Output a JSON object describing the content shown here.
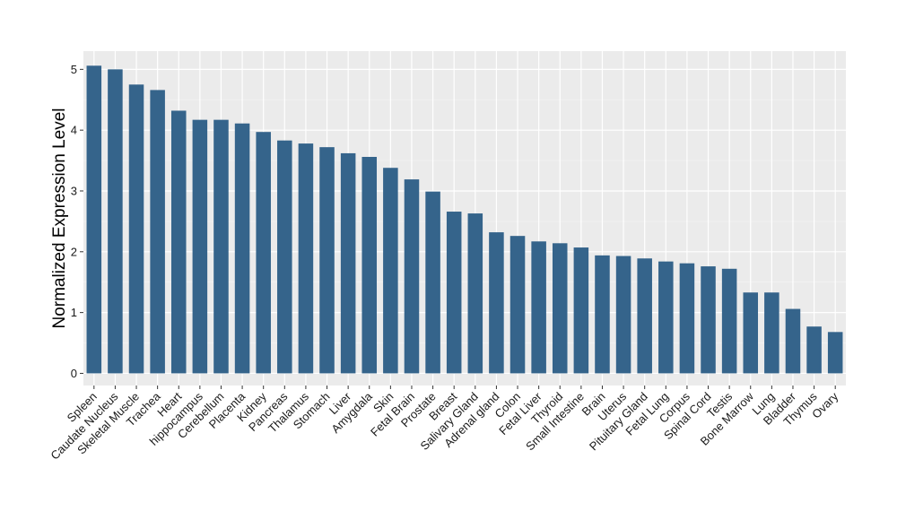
{
  "chart_data": {
    "type": "bar",
    "title": "",
    "xlabel": "",
    "ylabel": "Normalized Expression Level",
    "ylim": [
      -0.2,
      5.3
    ],
    "yticks": [
      0,
      1,
      2,
      3,
      4,
      5
    ],
    "grid": true,
    "legend": "none",
    "bar_color": "#35648b",
    "panel_color": "#ebebeb",
    "categories": [
      "Spleen",
      "Caudate Nucleus",
      "Skeletal Muscle",
      "Trachea",
      "Heart",
      "hippocampus",
      "Cerebellum",
      "Placenta",
      "Kidney",
      "Pancreas",
      "Thalamus",
      "Stomach",
      "Liver",
      "Amygdala",
      "Skin",
      "Fetal Brain",
      "Prostate",
      "Breast",
      "Salivary Gland",
      "Adrenal gland",
      "Colon",
      "Fetal Liver",
      "Thyroid",
      "Small Intestine",
      "Brain",
      "Uterus",
      "Pituitary Gland",
      "Fetal Lung",
      "Corpus",
      "Spinal Cord",
      "Testis",
      "Bone Marrow",
      "Lung",
      "Bladder",
      "Thymus",
      "Ovary"
    ],
    "values": [
      5.06,
      5.0,
      4.75,
      4.66,
      4.32,
      4.17,
      4.17,
      4.11,
      3.97,
      3.83,
      3.78,
      3.72,
      3.62,
      3.56,
      3.38,
      3.19,
      2.99,
      2.66,
      2.63,
      2.32,
      2.26,
      2.17,
      2.14,
      2.07,
      1.94,
      1.93,
      1.89,
      1.84,
      1.81,
      1.76,
      1.72,
      1.33,
      1.33,
      1.06,
      0.77,
      0.68
    ]
  }
}
